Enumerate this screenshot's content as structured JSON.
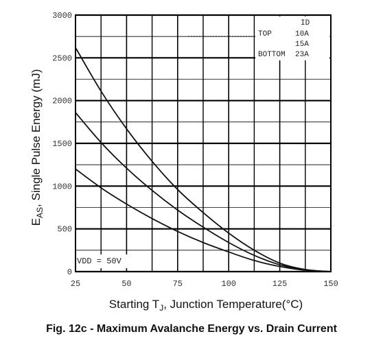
{
  "chart_data": {
    "type": "line",
    "xlabel_main": "Starting T",
    "xlabel_sub": "J",
    "xlabel_rest": ", Junction Temperature(°C)",
    "ylabel_main": "E",
    "ylabel_sub": "AS",
    "ylabel_rest": ", Single Pulse Energy (mJ)",
    "caption": "Fig. 12c - Maximum Avalanche Energy vs. Drain Current",
    "xlim": [
      25,
      150
    ],
    "ylim": [
      0,
      3000
    ],
    "x_ticks": [
      25,
      50,
      75,
      100,
      125,
      150
    ],
    "y_ticks": [
      0,
      500,
      1000,
      1500,
      2000,
      2500,
      3000
    ],
    "grid": true,
    "legend": {
      "title": "ID",
      "rows": [
        {
          "position": "TOP",
          "current": "10A"
        },
        {
          "position": "",
          "current": "15A"
        },
        {
          "position": "BOTTOM",
          "current": "23A"
        }
      ]
    },
    "note": "VDD = 50V",
    "series": [
      {
        "name": "10A",
        "x": [
          25,
          37.5,
          50,
          62.5,
          75,
          87.5,
          100,
          112.5,
          125,
          137.5,
          150
        ],
        "y": [
          2620,
          2110,
          1670,
          1290,
          960,
          690,
          450,
          250,
          100,
          25,
          0
        ]
      },
      {
        "name": "15A",
        "x": [
          25,
          37.5,
          50,
          62.5,
          75,
          87.5,
          100,
          112.5,
          125,
          137.5,
          150
        ],
        "y": [
          1860,
          1510,
          1210,
          950,
          720,
          520,
          340,
          190,
          80,
          20,
          0
        ]
      },
      {
        "name": "23A",
        "x": [
          25,
          37.5,
          50,
          62.5,
          75,
          87.5,
          100,
          112.5,
          125,
          137.5,
          150
        ],
        "y": [
          1200,
          980,
          790,
          620,
          470,
          340,
          230,
          130,
          60,
          15,
          0
        ]
      }
    ]
  }
}
